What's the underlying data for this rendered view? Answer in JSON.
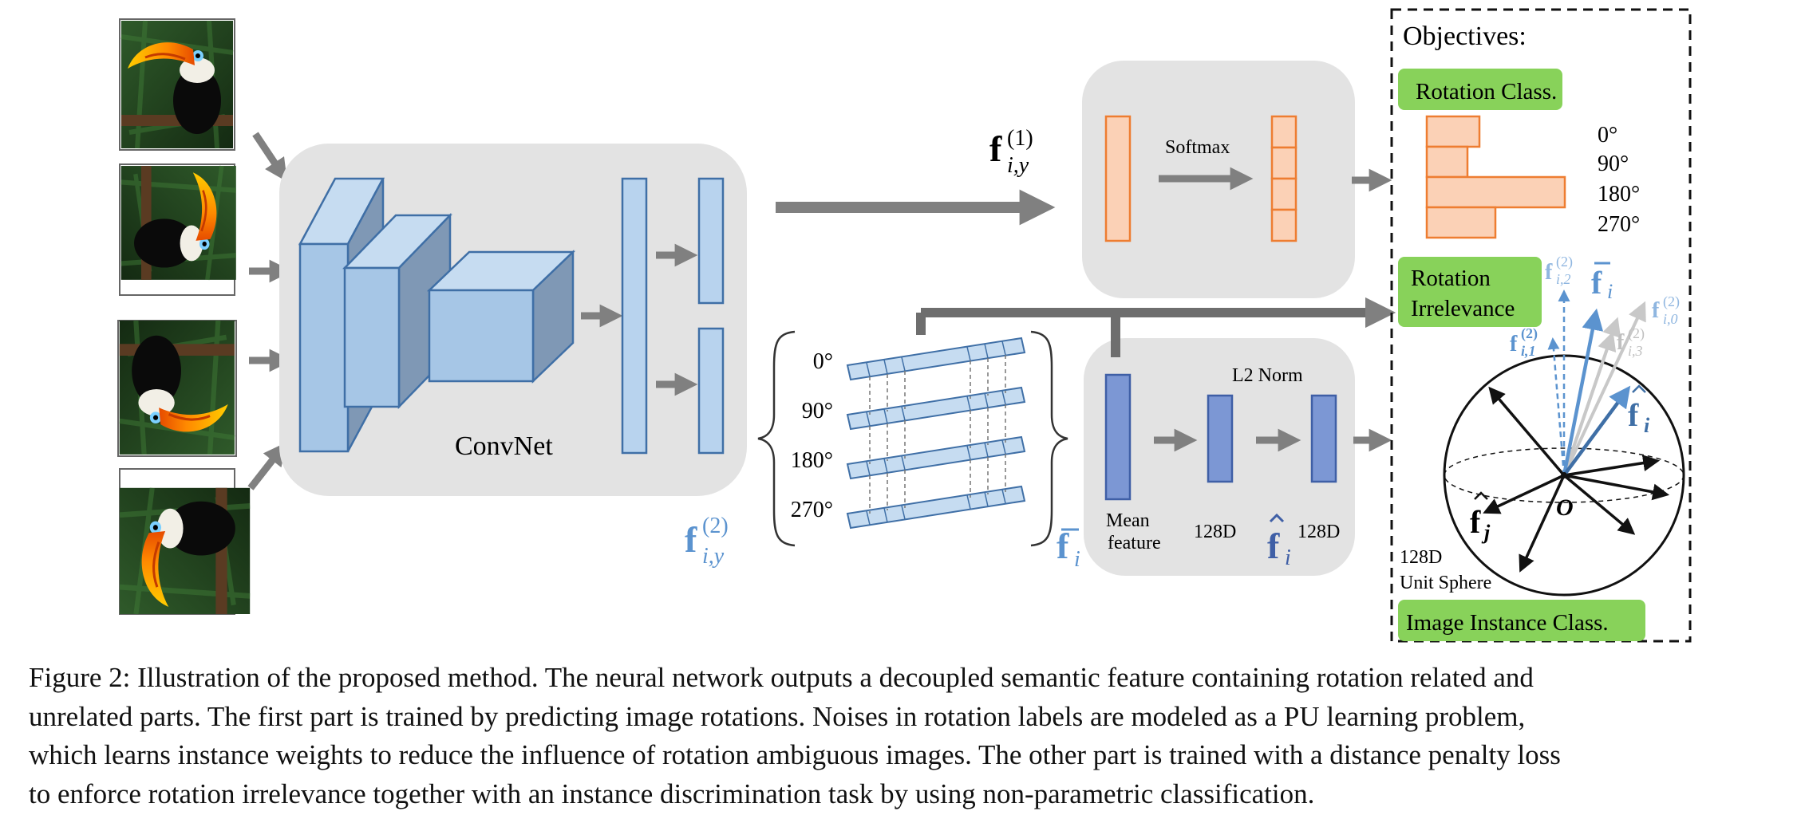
{
  "figure": {
    "convnet_label": "ConvNet",
    "f1_main": "f",
    "f1_sub": "i,y",
    "f1_sup": "(1)",
    "f2_main": "f",
    "f2_sub": "i,y",
    "f2_sup": "(2)",
    "fbar_main": "f",
    "fbar_sub": "i",
    "softmax_label": "Softmax",
    "l2norm_label": "L2 Norm",
    "mean_feature_line1": "Mean",
    "mean_feature_line2": "feature",
    "dim_label_1": "128D",
    "dim_label_2": "128D",
    "fhat_main": "f",
    "fhat_sub": "i",
    "rotation_angles": [
      "0°",
      "90°",
      "180°",
      "270°"
    ],
    "objectives_title": "Objectives:",
    "rotation_class_label": "Rotation Class.",
    "rotation_irrelevance_line1": "Rotation",
    "rotation_irrelevance_line2": "Irrelevance",
    "image_instance_label": "Image Instance Class.",
    "sphere_label_line1": "128D",
    "sphere_label_line2": "Unit Sphere",
    "sphere_origin": "O",
    "sphere_fj_main": "f",
    "sphere_fj_sub": "j",
    "sphere_fhat_main": "f",
    "sphere_fhat_sub": "i",
    "sphere_fbar_main": "f",
    "sphere_fbar_sub": "i",
    "sphere_f2_main": "f",
    "sphere_f2_sup": "(2)",
    "sphere_f2_sub_0": "i,0",
    "sphere_f2_sub_1": "i,1",
    "sphere_f2_sub_2": "i,2",
    "sphere_f2_sub_3": "i,3",
    "rotation_histogram": [
      {
        "angle": "0°",
        "value": 0.36
      },
      {
        "angle": "90°",
        "value": 0.28
      },
      {
        "angle": "180°",
        "value": 0.95
      },
      {
        "angle": "270°",
        "value": 0.47
      }
    ]
  },
  "caption": {
    "line1": "Figure 2: Illustration of the proposed method. The neural network outputs a decoupled semantic feature containing rotation related and",
    "line2": "unrelated parts. The first part is trained by predicting image rotations. Noises in rotation labels are modeled as a PU learning problem,",
    "line3": "which learns instance weights to reduce the influence of rotation ambiguous images. The other part is trained with a distance penalty loss",
    "line4": "to enforce rotation irrelevance together with an instance discrimination task by using non-parametric classification."
  },
  "colors": {
    "panel_gray": "#e3e3e3",
    "arrow_gray": "#808080",
    "conv_blue": "#a6c6e6",
    "conv_edge": "#3f6fa6",
    "orange_fill": "#fbd1b6",
    "orange_edge": "#ee7d31",
    "green_label": "#88d25a",
    "deep_blue": "#7c97d4",
    "accent_blue": "#5b93cf"
  }
}
